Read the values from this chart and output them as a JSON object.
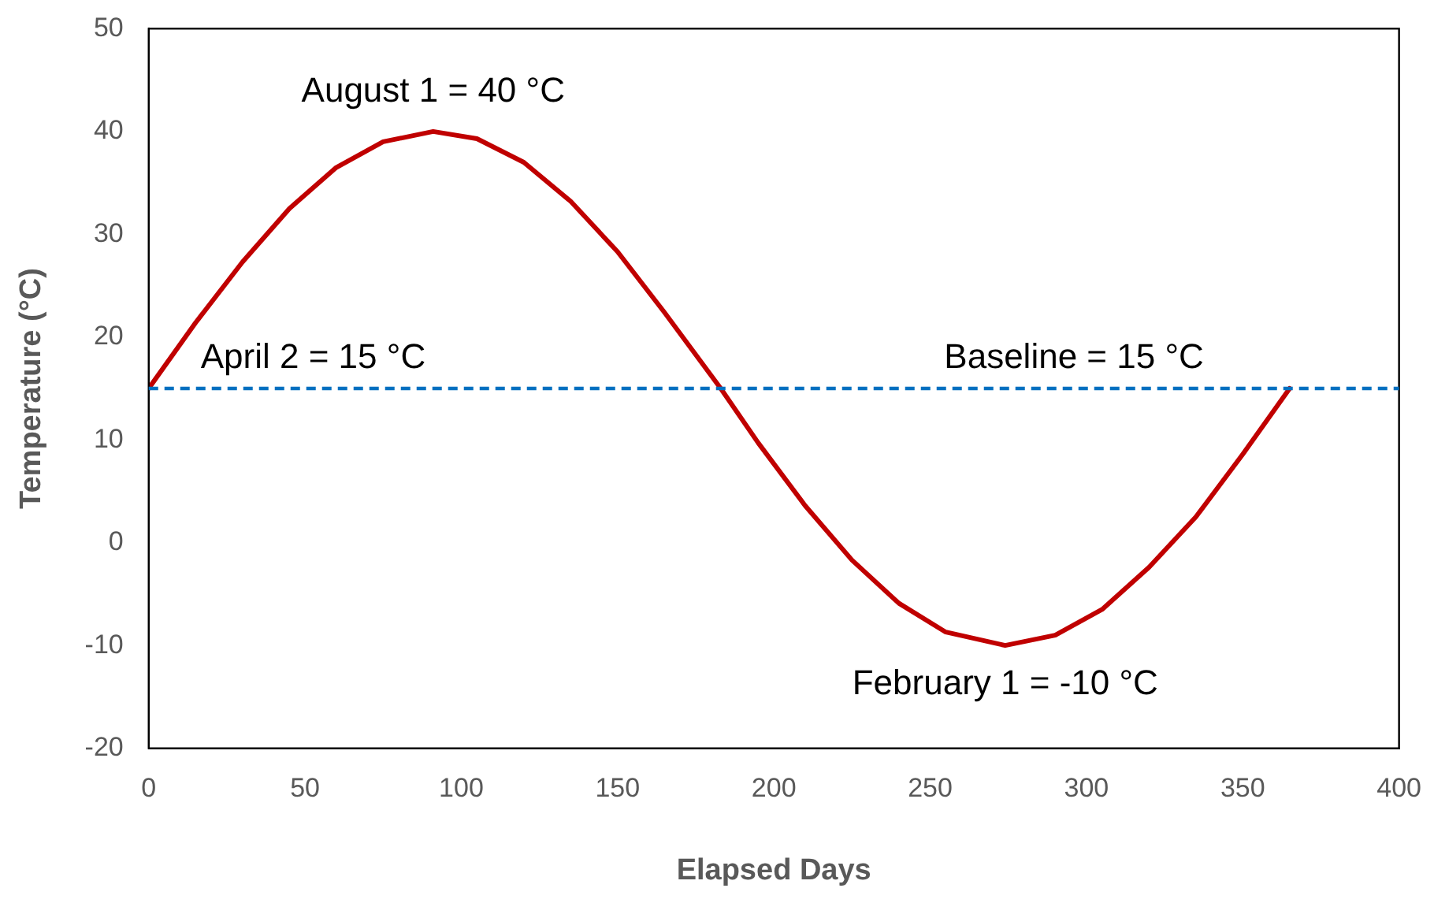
{
  "chart_data": {
    "type": "line",
    "xlabel": "Elapsed Days",
    "ylabel": "Temperature (°C)",
    "xlim": [
      0,
      400
    ],
    "xticks": [
      0,
      50,
      100,
      150,
      200,
      250,
      300,
      350,
      400
    ],
    "ylim": [
      -20,
      50
    ],
    "yticks": [
      -20,
      -10,
      0,
      10,
      20,
      30,
      40,
      50
    ],
    "grid": false,
    "legend": false,
    "marker": "none",
    "line_style": "solid",
    "series": [
      {
        "color": "#c00000",
        "x": [
          0,
          15,
          30,
          45,
          60,
          75,
          91,
          105,
          120,
          135,
          150,
          165,
          183,
          195,
          210,
          225,
          240,
          255,
          274,
          290,
          305,
          320,
          335,
          350,
          365
        ],
        "values": [
          15,
          21.4,
          27.3,
          32.5,
          36.5,
          39,
          40,
          39.3,
          37,
          33.2,
          28.3,
          22.4,
          15,
          9.7,
          3.6,
          -1.7,
          -5.9,
          -8.7,
          -10,
          -9,
          -6.5,
          -2.4,
          2.5,
          8.6,
          15
        ]
      }
    ],
    "ref_lines": [
      {
        "axis": "y",
        "value": 15,
        "label": "Baseline = 15 °C",
        "color": "#0070c0",
        "line_style": "dashed"
      }
    ],
    "annotations": [
      {
        "text": "August 1 = 40 °C",
        "x": 91,
        "y": 40
      },
      {
        "text": "April 2 = 15 °C",
        "x": 0,
        "y": 15
      },
      {
        "text": "February 1 = -10 °C",
        "x": 274,
        "y": -10
      }
    ]
  }
}
